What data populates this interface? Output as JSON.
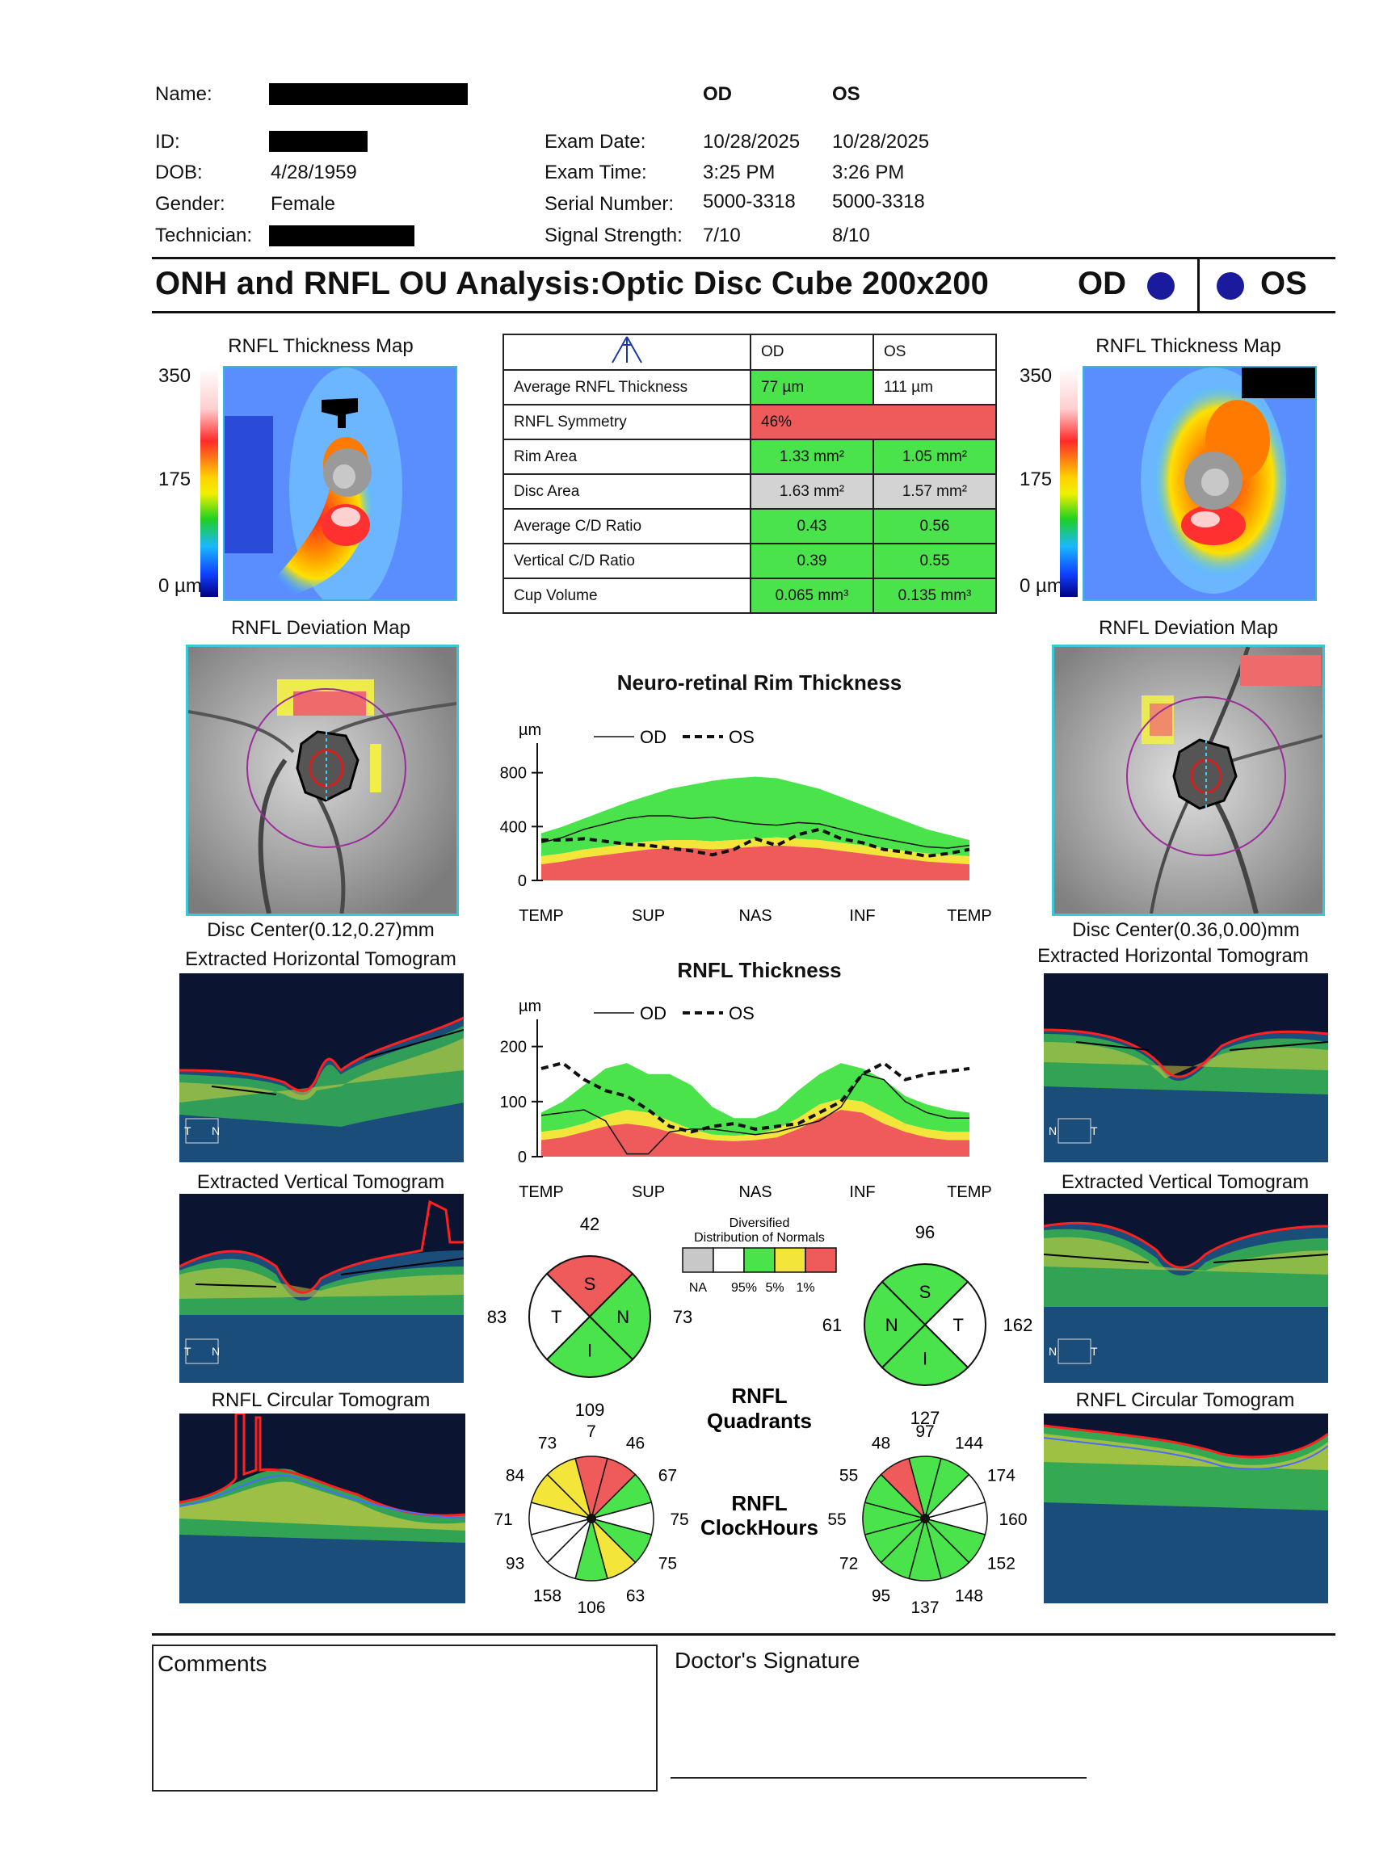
{
  "header": {
    "name_label": "Name:",
    "id_label": "ID:",
    "dob_label": "DOB:",
    "dob_value": "4/28/1959",
    "gender_label": "Gender:",
    "gender_value": "Female",
    "technician_label": "Technician:",
    "col_od": "OD",
    "col_os": "OS",
    "exam_date_label": "Exam Date:",
    "exam_date_od": "10/28/2025",
    "exam_date_os": "10/28/2025",
    "exam_time_label": "Exam Time:",
    "exam_time_od": "3:25 PM",
    "exam_time_os": "3:26 PM",
    "serial_label": "Serial Number:",
    "serial_od": "5000-3318",
    "serial_os": "5000-3318",
    "signal_label": "Signal Strength:",
    "signal_od": "7/10",
    "signal_os": "8/10"
  },
  "title": {
    "text": "ONH and RNFL OU Analysis:Optic Disc Cube 200x200",
    "od": "OD",
    "os": "OS"
  },
  "left": {
    "thickness_map_title": "RNFL Thickness Map",
    "scale_top": "350",
    "scale_mid": "175",
    "scale_bottom": "0 µm",
    "deviation_map_title": "RNFL Deviation Map",
    "disc_center": "Disc Center(0.12,0.27)mm",
    "horizontal_tomogram_title": "Extracted Horizontal Tomogram",
    "vertical_tomogram_title": "Extracted Vertical Tomogram",
    "circular_tomogram_title": "RNFL Circular Tomogram",
    "h_marker_a": "T",
    "h_marker_b": "N",
    "v_marker_a": "T",
    "v_marker_b": "N"
  },
  "right": {
    "thickness_map_title": "RNFL Thickness Map",
    "scale_top": "350",
    "scale_mid": "175",
    "scale_bottom": "0 µm",
    "deviation_map_title": "RNFL Deviation Map",
    "disc_center": "Disc Center(0.36,0.00)mm",
    "horizontal_tomogram_title": "Extracted Horizontal Tomogram",
    "vertical_tomogram_title": "Extracted Vertical Tomogram",
    "circular_tomogram_title": "RNFL Circular Tomogram",
    "h_marker_a": "N",
    "h_marker_b": "T",
    "v_marker_a": "N",
    "v_marker_b": "T"
  },
  "table": {
    "col_od": "OD",
    "col_os": "OS",
    "rows": [
      {
        "label": "Average RNFL Thickness",
        "od": "77 µm",
        "os": "111 µm"
      },
      {
        "label": "RNFL Symmetry",
        "od": "46%",
        "os": ""
      },
      {
        "label": "Rim Area",
        "od": "1.33 mm²",
        "os": "1.05 mm²"
      },
      {
        "label": "Disc Area",
        "od": "1.63 mm²",
        "os": "1.57 mm²"
      },
      {
        "label": "Average C/D Ratio",
        "od": "0.43",
        "os": "0.56"
      },
      {
        "label": "Vertical C/D Ratio",
        "od": "0.39",
        "os": "0.55"
      },
      {
        "label": "Cup Volume",
        "od": "0.065 mm³",
        "os": "0.135 mm³"
      }
    ]
  },
  "colors": {
    "green": "#4be34b",
    "yellow": "#f4e53a",
    "red": "#ef5a5a",
    "gray": "#d3d3d3",
    "eye_dot": "#1a1a9c"
  },
  "chart_data": [
    {
      "type": "area",
      "title": "Neuro-retinal Rim Thickness",
      "ylabel": "µm",
      "yticks": [
        "800",
        "400",
        "0"
      ],
      "ylim": [
        0,
        900
      ],
      "xticks": [
        "TEMP",
        "SUP",
        "NAS",
        "INF",
        "TEMP"
      ],
      "legend": {
        "od": "OD",
        "os": "OS"
      },
      "x": [
        0,
        0.05,
        0.1,
        0.15,
        0.2,
        0.25,
        0.3,
        0.35,
        0.4,
        0.45,
        0.5,
        0.55,
        0.6,
        0.65,
        0.7,
        0.75,
        0.8,
        0.85,
        0.9,
        0.95,
        1.0
      ],
      "normal_1pct": [
        120,
        140,
        170,
        190,
        210,
        230,
        240,
        240,
        230,
        240,
        250,
        260,
        250,
        240,
        220,
        200,
        180,
        160,
        140,
        130,
        120
      ],
      "normal_5pct": [
        180,
        200,
        230,
        250,
        270,
        290,
        300,
        300,
        290,
        300,
        310,
        320,
        310,
        300,
        280,
        260,
        240,
        220,
        200,
        190,
        180
      ],
      "normal_95pct": [
        350,
        400,
        460,
        520,
        580,
        630,
        680,
        710,
        740,
        760,
        770,
        760,
        720,
        680,
        620,
        560,
        500,
        440,
        380,
        340,
        300
      ],
      "od": [
        280,
        320,
        380,
        420,
        460,
        480,
        480,
        460,
        470,
        440,
        420,
        410,
        430,
        420,
        380,
        340,
        310,
        280,
        250,
        240,
        260
      ],
      "os": [
        300,
        300,
        310,
        290,
        270,
        260,
        240,
        220,
        190,
        230,
        310,
        260,
        340,
        380,
        310,
        280,
        230,
        210,
        180,
        200,
        230
      ]
    },
    {
      "type": "area",
      "title": "RNFL Thickness",
      "ylabel": "µm",
      "yticks": [
        "200",
        "100",
        "0"
      ],
      "ylim": [
        0,
        220
      ],
      "xticks": [
        "TEMP",
        "SUP",
        "NAS",
        "INF",
        "TEMP"
      ],
      "legend": {
        "od": "OD",
        "os": "OS"
      },
      "x": [
        0,
        0.05,
        0.1,
        0.15,
        0.2,
        0.25,
        0.3,
        0.35,
        0.4,
        0.45,
        0.5,
        0.55,
        0.6,
        0.65,
        0.7,
        0.75,
        0.8,
        0.85,
        0.9,
        0.95,
        1.0
      ],
      "normal_1pct": [
        30,
        35,
        45,
        55,
        60,
        55,
        45,
        35,
        30,
        28,
        30,
        35,
        50,
        70,
        85,
        80,
        60,
        45,
        35,
        30,
        30
      ],
      "normal_5pct": [
        45,
        50,
        60,
        75,
        85,
        80,
        65,
        50,
        40,
        38,
        40,
        50,
        70,
        95,
        105,
        100,
        80,
        60,
        50,
        45,
        45
      ],
      "normal_95pct": [
        80,
        100,
        130,
        160,
        170,
        150,
        150,
        130,
        90,
        70,
        70,
        85,
        120,
        150,
        170,
        160,
        140,
        110,
        95,
        85,
        80
      ],
      "od": [
        75,
        80,
        85,
        65,
        5,
        5,
        45,
        50,
        50,
        45,
        40,
        45,
        55,
        65,
        90,
        150,
        140,
        100,
        80,
        70,
        70
      ],
      "os": [
        160,
        170,
        140,
        120,
        110,
        85,
        55,
        45,
        55,
        60,
        50,
        55,
        60,
        80,
        100,
        150,
        170,
        140,
        150,
        155,
        160
      ]
    },
    {
      "type": "pie",
      "title": "RNFL Quadrants",
      "legend_title": "Diversified Distribution of Normals",
      "legend_labels": [
        "NA",
        "95%",
        "5%",
        "1%"
      ],
      "od": {
        "S": {
          "value": "42",
          "color": "red"
        },
        "N": {
          "value": "73",
          "color": "green"
        },
        "I": {
          "value": "109",
          "color": "green"
        },
        "T": {
          "value": "83",
          "color": "white"
        }
      },
      "os": {
        "S": {
          "value": "96",
          "color": "green"
        },
        "T": {
          "value": "162",
          "color": "white"
        },
        "I": {
          "value": "127",
          "color": "green"
        },
        "N": {
          "value": "61",
          "color": "green"
        }
      }
    },
    {
      "type": "pie",
      "title": "RNFL ClockHours",
      "od": {
        "values": [
          "7",
          "46",
          "67",
          "75",
          "75",
          "63",
          "106",
          "158",
          "93",
          "71",
          "84",
          "73"
        ],
        "colors": [
          "red",
          "red",
          "green",
          "white",
          "green",
          "yellow",
          "green",
          "white",
          "white",
          "white",
          "yellow",
          "yellow"
        ]
      },
      "os": {
        "values": [
          "97",
          "144",
          "174",
          "160",
          "152",
          "148",
          "137",
          "95",
          "72",
          "55",
          "55",
          "48"
        ],
        "colors": [
          "green",
          "green",
          "white",
          "white",
          "green",
          "green",
          "green",
          "green",
          "green",
          "green",
          "green",
          "red"
        ]
      }
    }
  ],
  "rim_chart": {
    "title": "Neuro-retinal Rim Thickness"
  },
  "rnfl_chart": {
    "title": "RNFL Thickness"
  },
  "quadrants": {
    "title_line1": "RNFL",
    "title_line2": "Quadrants"
  },
  "clockhours": {
    "title_line1": "RNFL",
    "title_line2": "ClockHours"
  },
  "legend": {
    "title_line1": "Diversified",
    "title_line2": "Distribution of Normals",
    "na": "NA",
    "p95": "95%",
    "p5": "5%",
    "p1": "1%"
  },
  "footer": {
    "comments_label": "Comments",
    "signature_label": "Doctor's Signature"
  }
}
